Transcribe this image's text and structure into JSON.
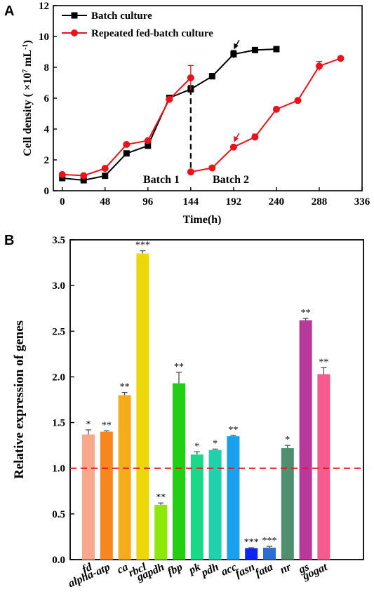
{
  "figure": {
    "panel_a": {
      "letter": "A",
      "ylabel_main": "Cell density ( ×10",
      "ylabel_sup": "7",
      "ylabel_unit": "mL",
      "ylabel_unit_sup": "-1",
      "ylabel_end": ")",
      "xlabel": "Time(h)",
      "annotation_batch1": "Batch 1",
      "annotation_batch2": "Batch 2"
    },
    "panel_b": {
      "letter": "B",
      "ylabel": "Relative expression of genes"
    }
  },
  "chart_data": [
    {
      "type": "line",
      "panel": "A",
      "title": "",
      "xlabel": "Time(h)",
      "ylabel": "Cell density ( ×10^7 mL^-1 )",
      "xlim": [
        -10,
        336
      ],
      "ylim": [
        0,
        12
      ],
      "xticks": [
        0,
        48,
        96,
        144,
        192,
        240,
        288,
        336
      ],
      "yticks": [
        0,
        2,
        4,
        6,
        8,
        10,
        12
      ],
      "legend_position": "top-left",
      "series": [
        {
          "name": "Batch culture",
          "color": "#000000",
          "marker": "square",
          "x": [
            0,
            24,
            48,
            72,
            96,
            120,
            144,
            168,
            192,
            216,
            240
          ],
          "y": [
            0.82,
            0.68,
            0.97,
            2.42,
            2.92,
            6.02,
            6.58,
            7.42,
            8.85,
            9.12,
            9.18
          ],
          "err": [
            0.08,
            0.06,
            0.08,
            0.1,
            0.12,
            0.12,
            0.25,
            0.18,
            0.25,
            0.1,
            0.08
          ]
        },
        {
          "name": "Repeated fed-batch culture",
          "color": "#e8141c",
          "marker": "circle",
          "x": [
            0,
            24,
            48,
            72,
            96,
            120,
            144,
            144,
            168,
            192,
            216,
            240,
            264,
            288,
            312
          ],
          "y": [
            1.05,
            0.98,
            1.45,
            3.0,
            3.25,
            5.92,
            7.32,
            1.22,
            1.48,
            2.83,
            3.48,
            5.28,
            5.85,
            8.08,
            8.58
          ],
          "err": [
            0.08,
            0.06,
            0.08,
            0.1,
            0.1,
            0.15,
            0.8,
            0.08,
            0.08,
            0.12,
            0.2,
            0.1,
            0.1,
            0.3,
            0.1
          ]
        }
      ],
      "divider_x": 144,
      "arrows": [
        {
          "series": "Batch culture",
          "x": 192,
          "y": 8.85,
          "color": "#000000"
        },
        {
          "series": "Repeated fed-batch culture",
          "x": 192,
          "y": 2.83,
          "color": "#e8141c"
        }
      ]
    },
    {
      "type": "bar",
      "panel": "B",
      "title": "",
      "xlabel": "",
      "ylabel": "Relative expression of genes",
      "ylim": [
        0,
        3.5
      ],
      "yticks": [
        0.0,
        0.5,
        1.0,
        1.5,
        2.0,
        2.5,
        3.0,
        3.5
      ],
      "reference_line": {
        "y": 1.0,
        "color": "#e8141c",
        "style": "dashed"
      },
      "categories": [
        "fd",
        "alpha-atp",
        "ca",
        "rbcl",
        "gapdh",
        "fbp",
        "pk",
        "pdh",
        "acc",
        "fasn",
        "fata",
        "nr",
        "gs",
        "gogat"
      ],
      "values": [
        1.37,
        1.4,
        1.8,
        3.35,
        0.6,
        1.93,
        1.15,
        1.2,
        1.35,
        0.125,
        0.13,
        1.22,
        2.62,
        2.03
      ],
      "errors": [
        0.05,
        0.01,
        0.03,
        0.03,
        0.02,
        0.12,
        0.03,
        0.01,
        0.01,
        0.005,
        0.015,
        0.03,
        0.02,
        0.07
      ],
      "significance": [
        "*",
        "**",
        "**",
        "***",
        "**",
        "**",
        "*",
        "*",
        "**",
        "***",
        "***",
        "*",
        "**",
        "**"
      ],
      "colors": [
        "#f9a88e",
        "#f7861f",
        "#f5ac1c",
        "#ecd80a",
        "#8fe80c",
        "#22cf15",
        "#1bd889",
        "#20d2ac",
        "#1aa0ec",
        "#0b28ee",
        "#2a6fcf",
        "#4f8f6e",
        "#b8399c",
        "#f55b8f"
      ]
    }
  ]
}
